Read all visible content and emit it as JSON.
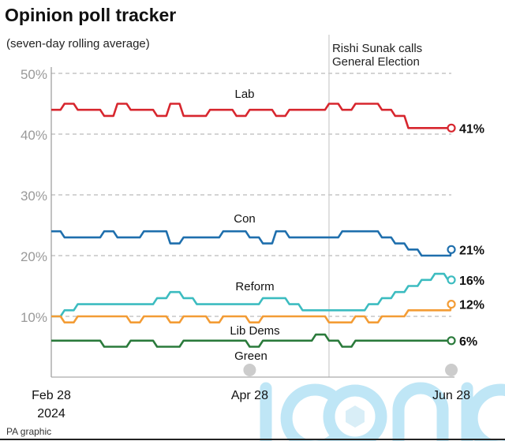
{
  "chart_data": {
    "type": "line",
    "title": "Opinion poll tracker",
    "subtitle": "(seven-day rolling average)",
    "annotation": {
      "date": "May 22",
      "text": [
        "Rishi Sunak calls",
        "General Election"
      ]
    },
    "x_ticks": [
      {
        "date": "Feb 28",
        "label": "Feb 28",
        "sub": "2024"
      },
      {
        "date": "Apr 28",
        "label": "Apr 28"
      },
      {
        "date": "Jun 28",
        "label": "Jun 28"
      }
    ],
    "y_ticks": [
      "10%",
      "20%",
      "30%",
      "40%",
      "50%"
    ],
    "y_tick_values": [
      10,
      20,
      30,
      40,
      50
    ],
    "ylim": [
      0,
      50
    ],
    "grid": "dashed horizontal",
    "dates": [
      "Feb 28",
      "Mar 3",
      "Mar 7",
      "Mar 11",
      "Mar 15",
      "Mar 19",
      "Mar 23",
      "Mar 27",
      "Mar 31",
      "Apr 4",
      "Apr 8",
      "Apr 12",
      "Apr 16",
      "Apr 20",
      "Apr 24",
      "Apr 28",
      "May 2",
      "May 6",
      "May 10",
      "May 14",
      "May 18",
      "May 22",
      "May 26",
      "May 30",
      "Jun 3",
      "Jun 7",
      "Jun 11",
      "Jun 15",
      "Jun 19",
      "Jun 23",
      "Jun 27",
      "Jun 28"
    ],
    "series": [
      {
        "name": "Lab",
        "color": "#d7262e",
        "end_label": "41%",
        "values": [
          44,
          45,
          44,
          44,
          43,
          45,
          44,
          44,
          43,
          45,
          43,
          43,
          44,
          44,
          43,
          44,
          44,
          43,
          44,
          44,
          44,
          45,
          44,
          45,
          45,
          44,
          43,
          41,
          41,
          41,
          41,
          41
        ]
      },
      {
        "name": "Con",
        "color": "#1f6fad",
        "end_label": "21%",
        "values": [
          24,
          23,
          23,
          23,
          24,
          23,
          23,
          24,
          24,
          22,
          23,
          23,
          23,
          24,
          24,
          23,
          22,
          24,
          23,
          23,
          23,
          23,
          24,
          24,
          24,
          23,
          22,
          21,
          20,
          20,
          20,
          21
        ]
      },
      {
        "name": "Reform",
        "color": "#3cbcc0",
        "end_label": "16%",
        "values": [
          10,
          11,
          12,
          12,
          12,
          12,
          12,
          12,
          13,
          14,
          13,
          12,
          12,
          12,
          12,
          12,
          13,
          13,
          12,
          11,
          11,
          11,
          11,
          11,
          12,
          13,
          14,
          15,
          16,
          17,
          16,
          16
        ]
      },
      {
        "name": "Lib Dems",
        "color": "#f39c35",
        "end_label": "12%",
        "values": [
          10,
          9,
          10,
          10,
          10,
          10,
          9,
          10,
          10,
          9,
          10,
          10,
          9,
          10,
          10,
          9,
          10,
          10,
          10,
          10,
          10,
          9,
          9,
          10,
          9,
          10,
          10,
          11,
          11,
          11,
          11,
          12
        ]
      },
      {
        "name": "Green",
        "color": "#2a7a3b",
        "end_label": "6%",
        "values": [
          6,
          6,
          6,
          6,
          5,
          5,
          6,
          6,
          5,
          5,
          6,
          6,
          6,
          6,
          6,
          5,
          6,
          6,
          6,
          6,
          7,
          6,
          5,
          6,
          6,
          6,
          6,
          6,
          6,
          6,
          6,
          6
        ]
      }
    ]
  },
  "footer": {
    "credit": "PA graphic"
  },
  "watermark": "iconic"
}
